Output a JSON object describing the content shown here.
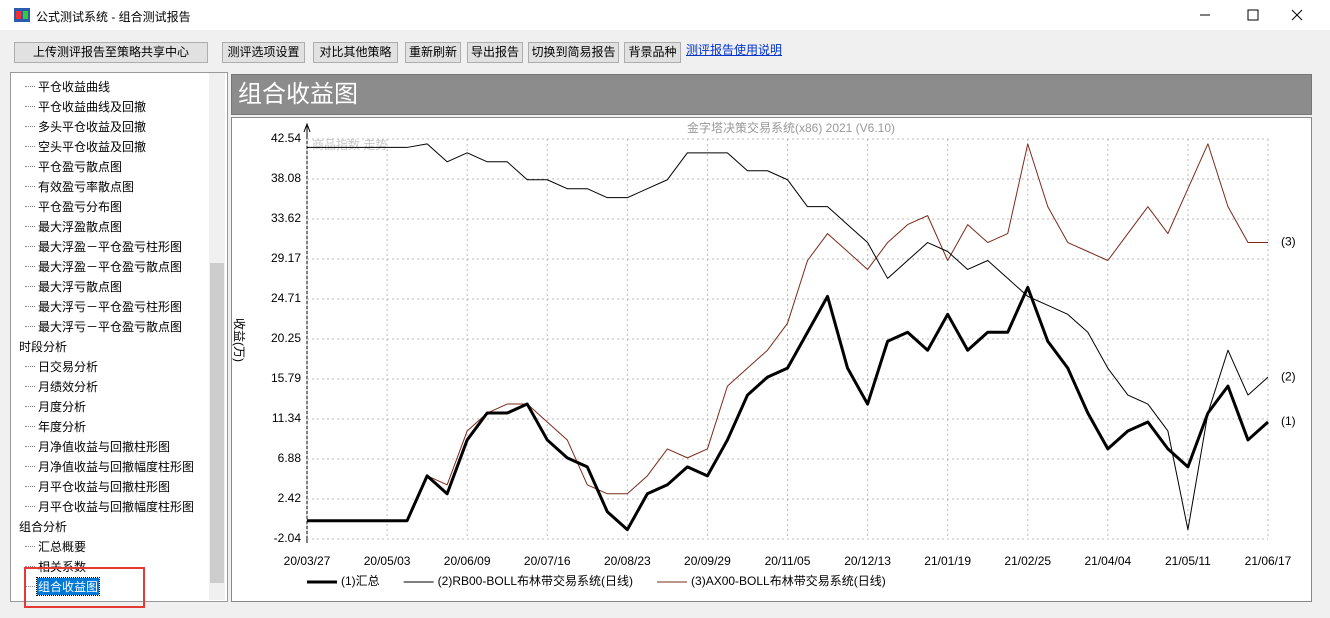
{
  "window": {
    "title": "公式测试系统 - 组合测试报告"
  },
  "toolbar": {
    "buttons": [
      "上传测评报告至策略共享中心",
      "测评选项设置",
      "对比其他策略",
      "重新刷新",
      "导出报告",
      "切换到简易报告",
      "背景品种"
    ],
    "link": "测评报告使用说明"
  },
  "tree": {
    "items": [
      "平仓收益曲线",
      "平仓收益曲线及回撤",
      "多头平仓收益及回撤",
      "空头平仓收益及回撤",
      "平仓盈亏散点图",
      "有效盈亏率散点图",
      "平仓盈亏分布图",
      "最大浮盈散点图",
      "最大浮盈－平仓盈亏柱形图",
      "最大浮盈－平仓盈亏散点图",
      "最大浮亏散点图",
      "最大浮亏－平仓盈亏柱形图",
      "最大浮亏－平仓盈亏散点图"
    ],
    "groups": [
      {
        "name": "时段分析",
        "items": [
          "日交易分析",
          "月绩效分析",
          "月度分析",
          "年度分析",
          "月净值收益与回撤柱形图",
          "月净值收益与回撤幅度柱形图",
          "月平仓收益与回撤柱形图",
          "月平仓收益与回撤幅度柱形图"
        ]
      },
      {
        "name": "组合分析",
        "items": [
          "汇总概要",
          "相关系数",
          "组合收益图"
        ]
      }
    ]
  },
  "panel": {
    "title": "组合收益图"
  },
  "chart_data": {
    "type": "line",
    "title": "金字塔决策交易系统(x86) 2021 (V6.10)",
    "annotation": "商品指数 走势",
    "y_label": "收益(万)",
    "x": [
      "20/03/27",
      "20/04/05",
      "20/04/14",
      "20/04/24",
      "20/05/03",
      "20/05/12",
      "20/05/21",
      "20/05/31",
      "20/06/09",
      "20/06/18",
      "20/06/27",
      "20/07/07",
      "20/07/16",
      "20/07/25",
      "20/08/04",
      "20/08/13",
      "20/08/23",
      "20/09/01",
      "20/09/10",
      "20/09/20",
      "20/09/29",
      "20/10/08",
      "20/10/17",
      "20/10/27",
      "20/11/05",
      "20/11/14",
      "20/11/24",
      "20/12/03",
      "20/12/13",
      "20/12/22",
      "20/12/31",
      "21/01/10",
      "21/01/19",
      "21/01/28",
      "21/02/06",
      "21/02/16",
      "21/02/25",
      "21/03/06",
      "21/03/16",
      "21/03/25",
      "21/04/04",
      "21/04/13",
      "21/04/22",
      "21/05/02",
      "21/05/11",
      "21/05/20",
      "21/05/29",
      "21/06/08",
      "21/06/17"
    ],
    "xticks": [
      "20/03/27",
      "20/05/03",
      "20/06/09",
      "20/07/16",
      "20/08/23",
      "20/09/29",
      "20/11/05",
      "20/12/13",
      "21/01/19",
      "21/02/25",
      "21/04/04",
      "21/05/11",
      "21/06/17"
    ],
    "ylim": [
      -2.04,
      42.54
    ],
    "yticks": [
      42.54,
      38.08,
      33.62,
      29.17,
      24.71,
      20.25,
      15.79,
      11.34,
      6.88,
      2.42,
      -2.04
    ],
    "grid": true,
    "series": [
      {
        "name": "(1)汇总",
        "label": "(1)",
        "color": "#000000",
        "width": 3,
        "values": [
          0,
          0,
          0,
          0,
          0,
          0,
          5,
          3,
          9,
          12,
          12,
          13,
          9,
          7,
          6,
          1,
          -1,
          3,
          4,
          6,
          5,
          9,
          14,
          16,
          17,
          21,
          25,
          17,
          13,
          20,
          21,
          19,
          23,
          19,
          21,
          21,
          26,
          20,
          17,
          12,
          8,
          10,
          11,
          8,
          6,
          12,
          15,
          9,
          11
        ]
      },
      {
        "name": "(2)RB00-BOLL布林带交易系统(日线)",
        "label": "(2)",
        "color": "#000000",
        "width": 1,
        "values": [
          41.6,
          41.6,
          41.6,
          41.6,
          41.6,
          41.6,
          42,
          40,
          41,
          40,
          40,
          38,
          38,
          37,
          37,
          36,
          36,
          37,
          38,
          41,
          41,
          41,
          39,
          39,
          38,
          35,
          35,
          33,
          31,
          27,
          29,
          31,
          30,
          28,
          29,
          27,
          25,
          24,
          23,
          21,
          17,
          14,
          13,
          10,
          -1,
          12,
          19,
          14,
          16
        ]
      },
      {
        "name": "(3)AX00-BOLL布林带交易系统(日线)",
        "label": "(3)",
        "color": "#7a2a1a",
        "width": 1,
        "values": [
          null,
          null,
          null,
          null,
          null,
          null,
          5,
          4,
          10,
          12,
          13,
          13,
          11,
          9,
          4,
          3,
          3,
          5,
          8,
          7,
          8,
          15,
          17,
          19,
          22,
          29,
          32,
          30,
          28,
          31,
          33,
          34,
          29,
          33,
          31,
          32,
          42,
          35,
          31,
          30,
          29,
          32,
          35,
          32,
          37,
          42,
          35,
          31,
          31
        ]
      }
    ]
  }
}
